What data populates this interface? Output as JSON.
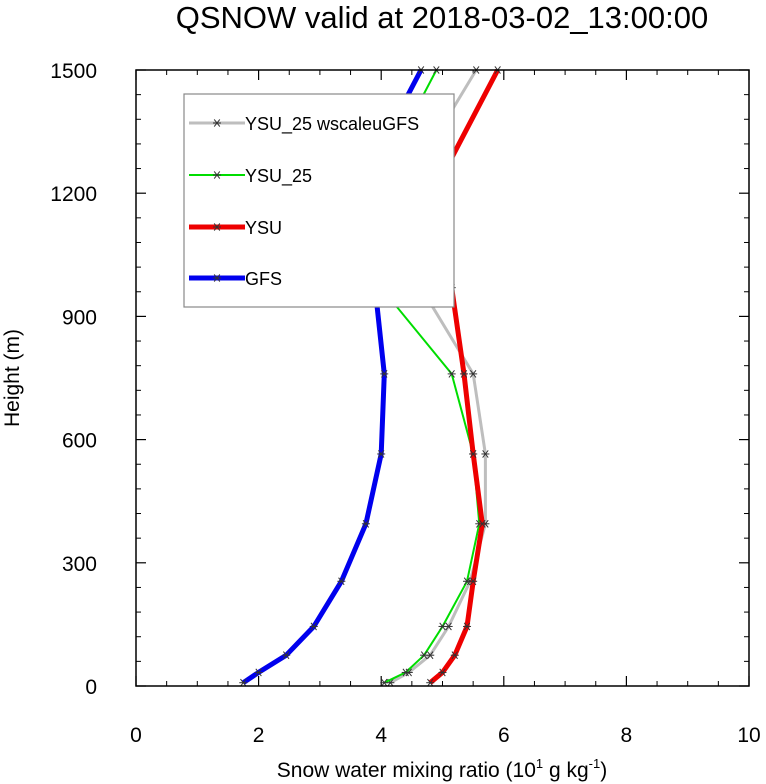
{
  "chart_data": {
    "type": "line",
    "title": "QSNOW valid at 2018-03-02_13:00:00",
    "xlabel": "Snow water mixing ratio (10",
    "xlabel_sup1": "1",
    "xlabel_mid": " g kg",
    "xlabel_sup2": "-1",
    "xlabel_end": ")",
    "ylabel": "Height (m)",
    "xlim": [
      0,
      10
    ],
    "ylim": [
      0,
      1500
    ],
    "xticks": [
      0,
      2,
      4,
      6,
      8,
      10
    ],
    "yticks": [
      0,
      300,
      600,
      900,
      1200,
      1500
    ],
    "legend_position": "top-left",
    "series": [
      {
        "name": "YSU_25 wscaleuGFS",
        "color": "#bebebe",
        "width": 3,
        "points": [
          [
            4.15,
            8
          ],
          [
            4.45,
            33
          ],
          [
            4.8,
            75
          ],
          [
            5.1,
            145
          ],
          [
            5.45,
            255
          ],
          [
            5.7,
            395
          ],
          [
            5.7,
            565
          ],
          [
            5.5,
            760
          ],
          [
            4.65,
            970
          ],
          [
            4.4,
            1215
          ],
          [
            5.55,
            1500
          ]
        ]
      },
      {
        "name": "YSU_25",
        "color": "#00dd00",
        "width": 2,
        "points": [
          [
            4.05,
            8
          ],
          [
            4.4,
            33
          ],
          [
            4.7,
            75
          ],
          [
            5.0,
            145
          ],
          [
            5.4,
            255
          ],
          [
            5.6,
            395
          ],
          [
            5.5,
            565
          ],
          [
            5.15,
            760
          ],
          [
            4.0,
            970
          ],
          [
            3.9,
            1215
          ],
          [
            4.9,
            1500
          ]
        ]
      },
      {
        "name": "YSU",
        "color": "#ee0000",
        "width": 5,
        "points": [
          [
            4.8,
            8
          ],
          [
            5.0,
            33
          ],
          [
            5.2,
            75
          ],
          [
            5.4,
            145
          ],
          [
            5.5,
            255
          ],
          [
            5.65,
            395
          ],
          [
            5.5,
            565
          ],
          [
            5.35,
            760
          ],
          [
            5.15,
            970
          ],
          [
            4.9,
            1215
          ],
          [
            5.9,
            1500
          ]
        ]
      },
      {
        "name": "GFS",
        "color": "#0000ee",
        "width": 5,
        "points": [
          [
            1.75,
            8
          ],
          [
            2.0,
            33
          ],
          [
            2.45,
            75
          ],
          [
            2.9,
            145
          ],
          [
            3.35,
            255
          ],
          [
            3.75,
            395
          ],
          [
            4.0,
            565
          ],
          [
            4.05,
            760
          ],
          [
            3.9,
            970
          ],
          [
            3.65,
            1215
          ],
          [
            4.65,
            1500
          ]
        ]
      }
    ]
  }
}
